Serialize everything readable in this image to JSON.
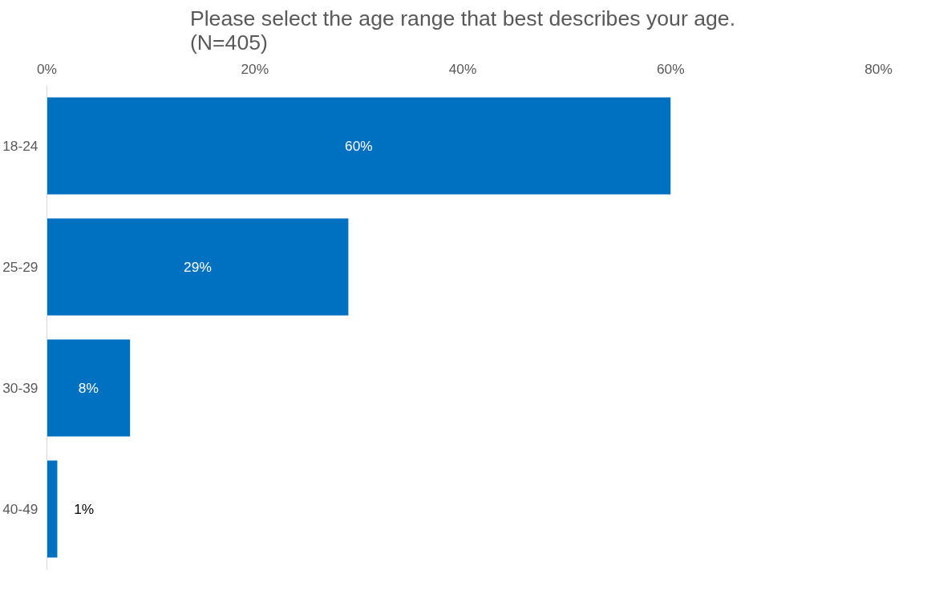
{
  "chart_data": {
    "type": "bar",
    "orientation": "horizontal",
    "title": "Please select the age range that best describes your age.\n(N=405)",
    "categories": [
      "18-24",
      "25-29",
      "30-39",
      "40-49"
    ],
    "values": [
      60,
      29,
      8,
      1
    ],
    "color": "#0070c0",
    "value_labels": [
      "60%",
      "29%",
      "8%",
      "1%"
    ],
    "xlim": [
      0,
      80
    ],
    "xticks": [
      {
        "value": 0,
        "label": "0%"
      },
      {
        "value": 20,
        "label": "20%"
      },
      {
        "value": 40,
        "label": "40%"
      },
      {
        "value": 60,
        "label": "60%"
      },
      {
        "value": 80,
        "label": "80%"
      }
    ],
    "grid": false
  }
}
